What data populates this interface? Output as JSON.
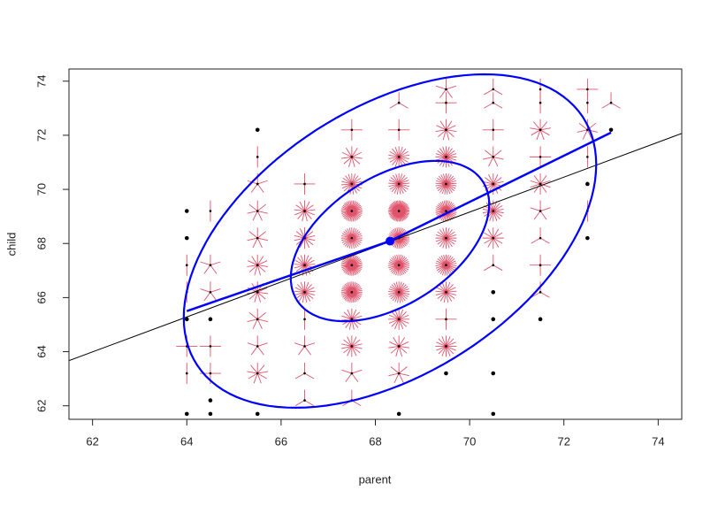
{
  "chart_data": {
    "type": "sunflower",
    "x_label": "parent",
    "y_label": "child",
    "xlim": [
      61.5,
      74.5
    ],
    "ylim": [
      61.5,
      74.45
    ],
    "xticks": [
      62,
      64,
      66,
      68,
      70,
      72,
      74
    ],
    "yticks": [
      62,
      64,
      66,
      68,
      70,
      72,
      74
    ],
    "points": {
      "x": [
        73,
        73,
        72.5,
        72.5,
        72.5,
        72.5,
        72.5,
        72.5,
        72.5,
        71.5,
        71.5,
        71.5,
        71.5,
        71.5,
        71.5,
        71.5,
        71.5,
        71.5,
        71.5,
        70.5,
        70.5,
        70.5,
        70.5,
        70.5,
        70.5,
        70.5,
        70.5,
        70.5,
        70.5,
        70.5,
        70.5,
        69.5,
        69.5,
        69.5,
        69.5,
        69.5,
        69.5,
        69.5,
        69.5,
        69.5,
        69.5,
        69.5,
        69.5,
        68.5,
        68.5,
        68.5,
        68.5,
        68.5,
        68.5,
        68.5,
        68.5,
        68.5,
        68.5,
        68.5,
        68.5,
        67.5,
        67.5,
        67.5,
        67.5,
        67.5,
        67.5,
        67.5,
        67.5,
        67.5,
        67.5,
        67.5,
        66.5,
        66.5,
        66.5,
        66.5,
        66.5,
        66.5,
        66.5,
        66.5,
        66.5,
        65.5,
        65.5,
        65.5,
        65.5,
        65.5,
        65.5,
        65.5,
        65.5,
        65.5,
        65.5,
        65.5,
        64.5,
        64.5,
        64.5,
        64.5,
        64.5,
        64.5,
        64.5,
        64.5,
        64,
        64,
        64,
        64,
        64,
        64,
        64,
        64
      ],
      "y": [
        72.2,
        73.2,
        68.2,
        69.2,
        70.2,
        71.2,
        72.2,
        73.2,
        73.7,
        65.2,
        66.2,
        67.2,
        68.2,
        69.2,
        70.2,
        71.2,
        72.2,
        73.2,
        73.7,
        61.7,
        63.2,
        65.2,
        66.2,
        67.2,
        68.2,
        69.2,
        70.2,
        71.2,
        72.2,
        73.2,
        73.7,
        63.2,
        64.2,
        65.2,
        66.2,
        67.2,
        68.2,
        69.2,
        70.2,
        71.2,
        72.2,
        73.2,
        73.7,
        61.7,
        63.2,
        64.2,
        65.2,
        66.2,
        67.2,
        68.2,
        69.2,
        70.2,
        71.2,
        72.2,
        73.2,
        62.2,
        63.2,
        64.2,
        65.2,
        66.2,
        67.2,
        68.2,
        69.2,
        70.2,
        71.2,
        72.2,
        62.2,
        63.2,
        64.2,
        65.2,
        66.2,
        67.2,
        68.2,
        69.2,
        70.2,
        61.7,
        63.2,
        64.2,
        65.2,
        66.2,
        67.2,
        68.2,
        69.2,
        70.2,
        71.2,
        72.2,
        61.7,
        62.2,
        63.2,
        64.2,
        65.2,
        66.2,
        67.2,
        69.2,
        61.7,
        63.2,
        64.2,
        65.2,
        66.2,
        67.2,
        68.2,
        69.2
      ],
      "counts": [
        1,
        3,
        1,
        2,
        1,
        2,
        7,
        2,
        4,
        1,
        3,
        4,
        3,
        5,
        10,
        4,
        9,
        2,
        2,
        1,
        1,
        1,
        1,
        3,
        12,
        18,
        14,
        7,
        4,
        3,
        3,
        1,
        16,
        4,
        17,
        27,
        20,
        33,
        25,
        20,
        11,
        4,
        5,
        1,
        7,
        11,
        16,
        25,
        31,
        34,
        48,
        21,
        18,
        4,
        3,
        3,
        5,
        14,
        15,
        36,
        38,
        28,
        38,
        19,
        11,
        4,
        3,
        3,
        5,
        2,
        17,
        17,
        14,
        13,
        4,
        1,
        9,
        5,
        7,
        11,
        11,
        7,
        7,
        5,
        2,
        1,
        1,
        1,
        4,
        4,
        1,
        5,
        5,
        2,
        1,
        2,
        4,
        1,
        2,
        2,
        1,
        1
      ]
    },
    "point_color": "#000000",
    "petal_color": "#DF536B",
    "regression": {
      "intercept": 23.94,
      "slope": 0.646,
      "color": "#000000"
    },
    "ellipse": {
      "center": [
        68.31,
        68.09
      ],
      "cov": [
        [
          3.195,
          2.065
        ],
        [
          2.065,
          6.34
        ]
      ],
      "levels": [
        0.5,
        0.95
      ],
      "color": "#0000FF"
    },
    "fit_line": {
      "x": [
        64,
        68.31,
        73
      ],
      "y": [
        65.5,
        68.09,
        72.1
      ],
      "color": "#0000FF"
    }
  }
}
